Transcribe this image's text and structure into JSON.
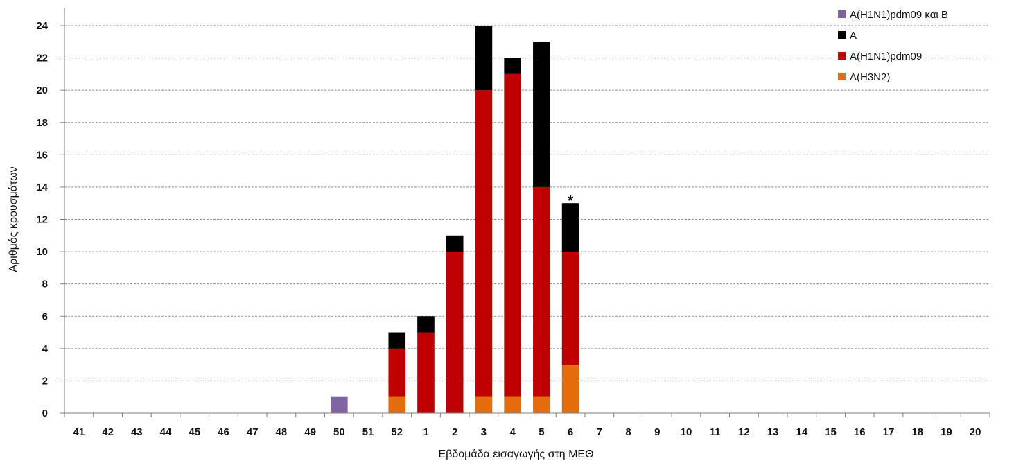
{
  "chart_data": {
    "type": "bar",
    "stacked": true,
    "xlabel": "Εβδομάδα εισαγωγής στη ΜΕΘ",
    "ylabel": "Αριθμός κρουσμάτων",
    "ylim": [
      0,
      24
    ],
    "yticks": [
      "0",
      "2",
      "4",
      "6",
      "8",
      "10",
      "12",
      "14",
      "16",
      "18",
      "20",
      "22",
      "24"
    ],
    "grid": "horizontal dashed",
    "legend_position": "top-right",
    "categories": [
      "41",
      "42",
      "43",
      "44",
      "45",
      "46",
      "47",
      "48",
      "49",
      "50",
      "51",
      "52",
      "1",
      "2",
      "3",
      "4",
      "5",
      "6",
      "7",
      "8",
      "9",
      "10",
      "11",
      "12",
      "13",
      "14",
      "15",
      "16",
      "17",
      "18",
      "19",
      "20"
    ],
    "series": [
      {
        "name": "A(H3N2)",
        "color": "#e46c0a",
        "values": [
          0,
          0,
          0,
          0,
          0,
          0,
          0,
          0,
          0,
          0,
          0,
          1,
          0,
          0,
          1,
          1,
          1,
          3,
          0,
          0,
          0,
          0,
          0,
          0,
          0,
          0,
          0,
          0,
          0,
          0,
          0,
          0
        ]
      },
      {
        "name": "A(H1N1)pdm09",
        "color": "#c00000",
        "values": [
          0,
          0,
          0,
          0,
          0,
          0,
          0,
          0,
          0,
          0,
          0,
          3,
          5,
          10,
          19,
          20,
          13,
          7,
          0,
          0,
          0,
          0,
          0,
          0,
          0,
          0,
          0,
          0,
          0,
          0,
          0,
          0
        ]
      },
      {
        "name": "A",
        "color": "#000000",
        "values": [
          0,
          0,
          0,
          0,
          0,
          0,
          0,
          0,
          0,
          0,
          0,
          1,
          1,
          1,
          4,
          1,
          9,
          3,
          0,
          0,
          0,
          0,
          0,
          0,
          0,
          0,
          0,
          0,
          0,
          0,
          0,
          0
        ]
      },
      {
        "name": "A(H1N1)pdm09 και B",
        "color": "#8064a2",
        "values": [
          0,
          0,
          0,
          0,
          0,
          0,
          0,
          0,
          0,
          1,
          0,
          0,
          0,
          0,
          0,
          0,
          0,
          0,
          0,
          0,
          0,
          0,
          0,
          0,
          0,
          0,
          0,
          0,
          0,
          0,
          0,
          0
        ]
      }
    ],
    "legend_order": [
      "A(H1N1)pdm09 και B",
      "A",
      "A(H1N1)pdm09",
      "A(H3N2)"
    ],
    "annotations": [
      {
        "category": "6",
        "text": "*"
      }
    ]
  }
}
